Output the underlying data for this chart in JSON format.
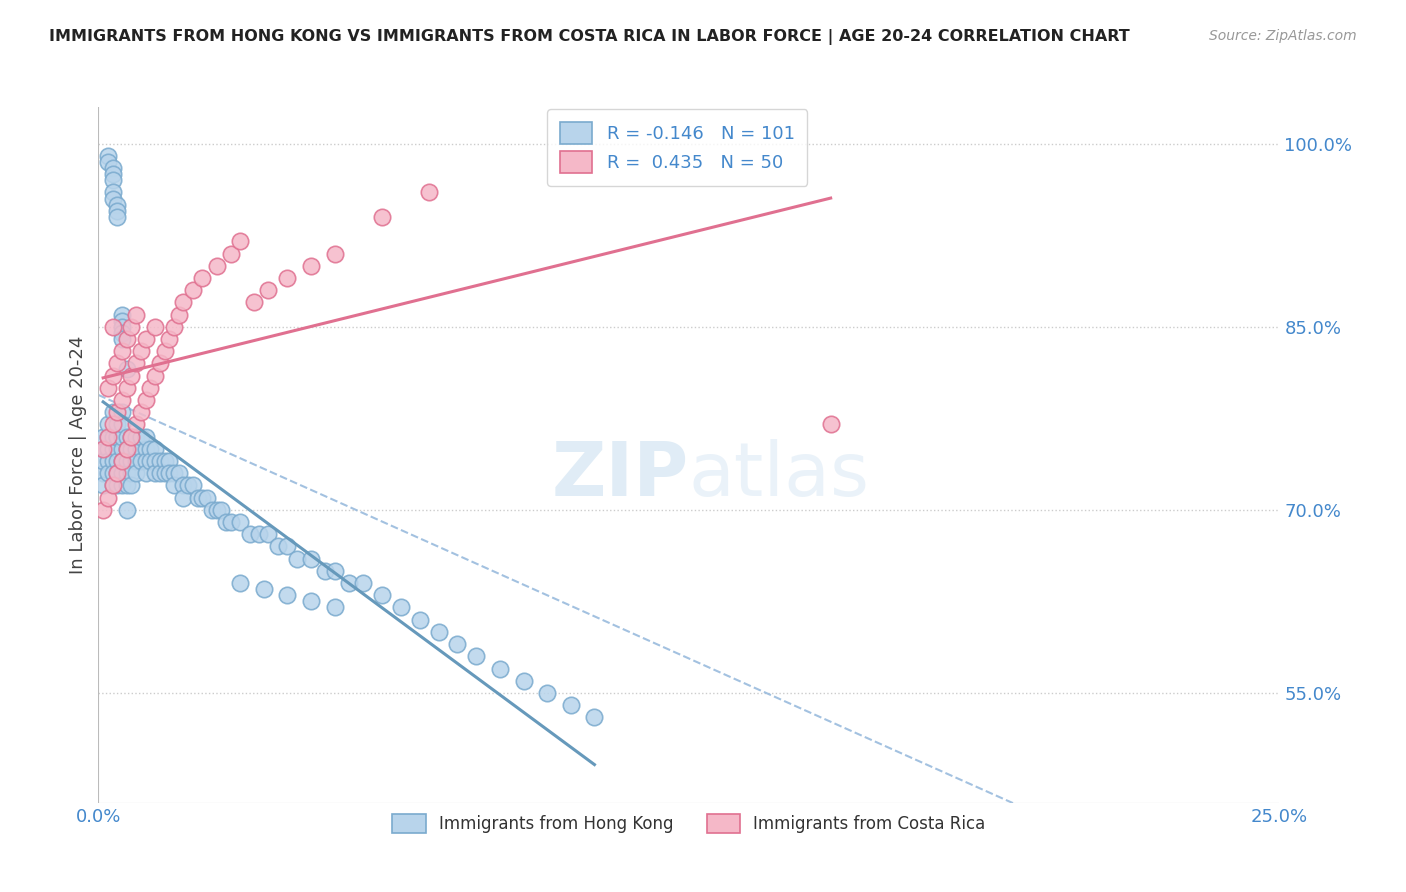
{
  "title": "IMMIGRANTS FROM HONG KONG VS IMMIGRANTS FROM COSTA RICA IN LABOR FORCE | AGE 20-24 CORRELATION CHART",
  "source": "Source: ZipAtlas.com",
  "ylabel": "In Labor Force | Age 20-24",
  "xlim": [
    0.0,
    0.25
  ],
  "ylim": [
    0.46,
    1.03
  ],
  "yticks": [
    0.55,
    0.7,
    0.85,
    1.0
  ],
  "ytick_labels": [
    "55.0%",
    "70.0%",
    "85.0%",
    "100.0%"
  ],
  "xticks": [
    0.0,
    0.25
  ],
  "xtick_labels": [
    "0.0%",
    "25.0%"
  ],
  "bottom_legend_labels": [
    "Immigrants from Hong Kong",
    "Immigrants from Costa Rica"
  ],
  "r_hk": -0.146,
  "n_hk": 101,
  "r_cr": 0.435,
  "n_cr": 50,
  "color_hk_fill": "#b8d4eb",
  "color_hk_edge": "#7aaace",
  "color_cr_fill": "#f5b8c8",
  "color_cr_edge": "#e07090",
  "color_hk_line": "#6699bb",
  "color_cr_line": "#e07090",
  "color_dashed": "#99bbdd",
  "color_r_value": "#4488cc",
  "background_color": "#ffffff",
  "watermark_color": "#cce0f0",
  "hk_x": [
    0.001,
    0.001,
    0.001,
    0.001,
    0.001,
    0.002,
    0.002,
    0.002,
    0.002,
    0.002,
    0.003,
    0.003,
    0.003,
    0.003,
    0.003,
    0.003,
    0.004,
    0.004,
    0.004,
    0.004,
    0.004,
    0.004,
    0.004,
    0.005,
    0.005,
    0.005,
    0.005,
    0.005,
    0.005,
    0.005,
    0.006,
    0.006,
    0.006,
    0.006,
    0.006,
    0.006,
    0.007,
    0.007,
    0.007,
    0.007,
    0.007,
    0.008,
    0.008,
    0.008,
    0.008,
    0.009,
    0.009,
    0.009,
    0.01,
    0.01,
    0.01,
    0.01,
    0.011,
    0.011,
    0.012,
    0.012,
    0.012,
    0.013,
    0.013,
    0.014,
    0.014,
    0.015,
    0.015,
    0.016,
    0.016,
    0.017,
    0.018,
    0.018,
    0.019,
    0.02,
    0.021,
    0.022,
    0.023,
    0.024,
    0.025,
    0.026,
    0.027,
    0.028,
    0.03,
    0.032,
    0.034,
    0.036,
    0.038,
    0.04,
    0.042,
    0.045,
    0.048,
    0.05,
    0.053,
    0.056,
    0.06,
    0.064,
    0.068,
    0.072,
    0.076,
    0.08,
    0.085,
    0.09,
    0.095,
    0.1,
    0.105
  ],
  "hk_y": [
    0.73,
    0.75,
    0.76,
    0.72,
    0.74,
    0.76,
    0.77,
    0.75,
    0.74,
    0.73,
    0.75,
    0.76,
    0.74,
    0.72,
    0.73,
    0.78,
    0.75,
    0.76,
    0.74,
    0.73,
    0.72,
    0.76,
    0.77,
    0.75,
    0.76,
    0.74,
    0.73,
    0.72,
    0.78,
    0.77,
    0.75,
    0.76,
    0.74,
    0.73,
    0.72,
    0.7,
    0.75,
    0.76,
    0.74,
    0.73,
    0.72,
    0.75,
    0.76,
    0.74,
    0.73,
    0.75,
    0.76,
    0.74,
    0.75,
    0.76,
    0.74,
    0.73,
    0.75,
    0.74,
    0.75,
    0.74,
    0.73,
    0.74,
    0.73,
    0.74,
    0.73,
    0.74,
    0.73,
    0.73,
    0.72,
    0.73,
    0.72,
    0.71,
    0.72,
    0.72,
    0.71,
    0.71,
    0.71,
    0.7,
    0.7,
    0.7,
    0.69,
    0.69,
    0.69,
    0.68,
    0.68,
    0.68,
    0.67,
    0.67,
    0.66,
    0.66,
    0.65,
    0.65,
    0.64,
    0.64,
    0.63,
    0.62,
    0.61,
    0.6,
    0.59,
    0.58,
    0.57,
    0.56,
    0.55,
    0.54,
    0.53
  ],
  "hk_y_extra": [
    0.99,
    0.985,
    0.98,
    0.975,
    0.97,
    0.96,
    0.955,
    0.95,
    0.945,
    0.94,
    0.86,
    0.855,
    0.85,
    0.845,
    0.84,
    0.815,
    0.64,
    0.635,
    0.63,
    0.625,
    0.62
  ],
  "hk_x_extra": [
    0.002,
    0.002,
    0.003,
    0.003,
    0.003,
    0.003,
    0.003,
    0.004,
    0.004,
    0.004,
    0.005,
    0.005,
    0.005,
    0.005,
    0.005,
    0.006,
    0.03,
    0.035,
    0.04,
    0.045,
    0.05
  ],
  "cr_x": [
    0.001,
    0.001,
    0.002,
    0.002,
    0.002,
    0.003,
    0.003,
    0.003,
    0.003,
    0.004,
    0.004,
    0.004,
    0.005,
    0.005,
    0.005,
    0.006,
    0.006,
    0.006,
    0.007,
    0.007,
    0.007,
    0.008,
    0.008,
    0.008,
    0.009,
    0.009,
    0.01,
    0.01,
    0.011,
    0.012,
    0.012,
    0.013,
    0.014,
    0.015,
    0.016,
    0.017,
    0.018,
    0.02,
    0.022,
    0.025,
    0.028,
    0.03,
    0.033,
    0.036,
    0.04,
    0.045,
    0.05,
    0.06,
    0.07,
    0.155
  ],
  "cr_y": [
    0.7,
    0.75,
    0.71,
    0.76,
    0.8,
    0.72,
    0.77,
    0.81,
    0.85,
    0.73,
    0.78,
    0.82,
    0.74,
    0.79,
    0.83,
    0.75,
    0.8,
    0.84,
    0.76,
    0.81,
    0.85,
    0.77,
    0.82,
    0.86,
    0.78,
    0.83,
    0.79,
    0.84,
    0.8,
    0.81,
    0.85,
    0.82,
    0.83,
    0.84,
    0.85,
    0.86,
    0.87,
    0.88,
    0.89,
    0.9,
    0.91,
    0.92,
    0.87,
    0.88,
    0.89,
    0.9,
    0.91,
    0.94,
    0.96,
    0.77
  ]
}
